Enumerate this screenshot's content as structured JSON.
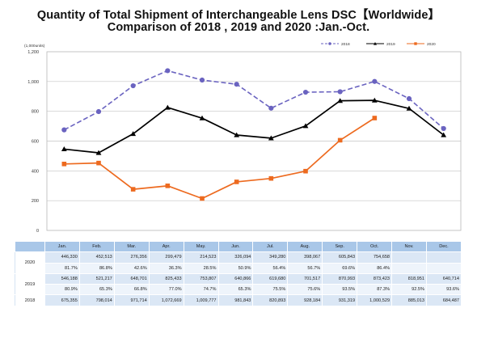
{
  "header": {
    "title": "Quantity of Total Shipment of Interchangeable Lens DSC【Worldwide】",
    "subtitle": "Comparison of 2018 , 2019 and 2020 :Jan.-Oct."
  },
  "chart_data": {
    "type": "line",
    "categories": [
      "Jan.",
      "Feb.",
      "Mar.",
      "Apr.",
      "May.",
      "Jun.",
      "Jul.",
      "Aug.",
      "Sep.",
      "Oct.",
      "Nov.",
      "Dec."
    ],
    "unit_label": "(1,000units)",
    "ylim": [
      0,
      1200
    ],
    "yticks": [
      "0",
      "200",
      "400",
      "600",
      "800",
      "1,000",
      "1,200"
    ],
    "ytick_values": [
      0,
      200,
      400,
      600,
      800,
      1000,
      1200
    ],
    "grid": true,
    "legend_position": "top-right",
    "series": [
      {
        "name": "2018",
        "color": "#6a63c0",
        "style": "dashed",
        "marker": "circle",
        "values": [
          675.355,
          798.014,
          971.714,
          1072.669,
          1009.777,
          981.843,
          820.893,
          928.184,
          931.319,
          1000.529,
          885.013,
          684.487
        ]
      },
      {
        "name": "2019",
        "color": "#000000",
        "style": "solid",
        "marker": "triangle",
        "values": [
          546.188,
          521.217,
          648.701,
          825.433,
          753.807,
          640.866,
          619.68,
          701.517,
          870.993,
          873.423,
          818.951,
          640.714
        ]
      },
      {
        "name": "2020",
        "color": "#ed6a1f",
        "style": "solid",
        "marker": "square",
        "values": [
          446.33,
          452.513,
          276.356,
          299.479,
          214.523,
          326.094,
          349.28,
          398.067,
          605.843,
          754.658,
          null,
          null
        ]
      }
    ]
  },
  "table": {
    "headers": [
      "Jan.",
      "Feb.",
      "Mar.",
      "Apr.",
      "May.",
      "Jun.",
      "Jul.",
      "Aug.",
      "Sep.",
      "Oct.",
      "Nov.",
      "Dec."
    ],
    "rows": [
      {
        "label": "2020",
        "values": [
          "446,330",
          "452,513",
          "276,356",
          "299,479",
          "214,523",
          "326,094",
          "349,280",
          "398,067",
          "605,843",
          "754,658",
          "",
          ""
        ],
        "ratios": [
          "81.7%",
          "86.8%",
          "42.6%",
          "36.3%",
          "28.5%",
          "50.9%",
          "56.4%",
          "56.7%",
          "69.6%",
          "86.4%",
          "",
          ""
        ]
      },
      {
        "label": "2019",
        "values": [
          "546,188",
          "521,217",
          "648,701",
          "825,433",
          "753,807",
          "640,866",
          "619,680",
          "701,517",
          "870,993",
          "873,423",
          "818,951",
          "640,714"
        ],
        "ratios": [
          "80.9%",
          "65.3%",
          "66.8%",
          "77.0%",
          "74.7%",
          "65.3%",
          "75.5%",
          "75.6%",
          "93.5%",
          "87.3%",
          "92.5%",
          "93.6%"
        ]
      },
      {
        "label": "2018",
        "values": [
          "675,355",
          "798,014",
          "971,714",
          "1,072,669",
          "1,009,777",
          "981,843",
          "820,893",
          "928,184",
          "931,319",
          "1,000,529",
          "885,013",
          "684,487"
        ]
      }
    ]
  }
}
